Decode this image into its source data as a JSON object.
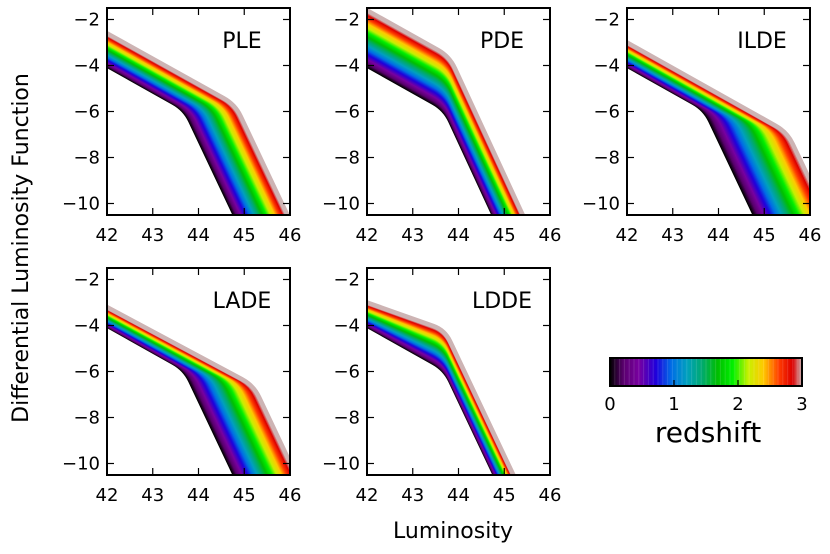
{
  "figure": {
    "xlabel": "Luminosity",
    "ylabel": "Differential Luminosity Function"
  },
  "colorbar": {
    "label": "redshift",
    "ticks": [
      "0",
      "1",
      "2",
      "3"
    ],
    "range": [
      0,
      3
    ]
  },
  "chart_data": [
    {
      "type": "line",
      "title": "PLE",
      "xlim": [
        42,
        46
      ],
      "ylim": [
        -10.5,
        -1.5
      ],
      "xticks": [
        "42",
        "43",
        "44",
        "45",
        "46"
      ],
      "yticks": [
        "−2",
        "−4",
        "−6",
        "−8",
        "−10"
      ],
      "series_description": "one curve per redshift 0 to 3",
      "curve_low_z": {
        "knee_x": 43.7,
        "knee_y": -5.9,
        "start_y": -4.0,
        "steep_slope": -4.2
      },
      "curve_high_z": {
        "knee_x": 44.8,
        "knee_y": -5.7,
        "start_y": -2.6,
        "steep_slope": -4.2
      }
    },
    {
      "type": "line",
      "title": "PDE",
      "xlim": [
        42,
        46
      ],
      "ylim": [
        -10.5,
        -1.5
      ],
      "xticks": [
        "42",
        "43",
        "44",
        "45",
        "46"
      ],
      "yticks": [
        "−2",
        "−4",
        "−6",
        "−8",
        "−10"
      ],
      "series_description": "one curve per redshift 0 to 3",
      "curve_low_z": {
        "knee_x": 43.7,
        "knee_y": -5.9,
        "start_y": -4.0,
        "steep_slope": -4.3
      },
      "curve_high_z": {
        "knee_x": 43.8,
        "knee_y": -3.6,
        "start_y": -1.6,
        "steep_slope": -4.3
      }
    },
    {
      "type": "line",
      "title": "ILDE",
      "xlim": [
        42,
        46
      ],
      "ylim": [
        -10.5,
        -1.5
      ],
      "xticks": [
        "42",
        "43",
        "44",
        "45",
        "46"
      ],
      "yticks": [
        "−2",
        "−4",
        "−6",
        "−8",
        "−10"
      ],
      "series_description": "one curve per redshift 0 to 3",
      "curve_low_z": {
        "knee_x": 43.7,
        "knee_y": -5.9,
        "start_y": -4.0,
        "steep_slope": -4.2
      },
      "curve_high_z": {
        "knee_x": 45.5,
        "knee_y": -6.9,
        "start_y": -3.0,
        "steep_slope": -4.2
      }
    },
    {
      "type": "line",
      "title": "LADE",
      "xlim": [
        42,
        46
      ],
      "ylim": [
        -10.5,
        -1.5
      ],
      "xticks": [
        "42",
        "43",
        "44",
        "45",
        "46"
      ],
      "yticks": [
        "−2",
        "−4",
        "−6",
        "−8",
        "−10"
      ],
      "series_description": "one curve per redshift 0 to 3",
      "curve_low_z": {
        "knee_x": 43.7,
        "knee_y": -5.9,
        "start_y": -4.0,
        "steep_slope": -4.2
      },
      "curve_high_z": {
        "knee_x": 45.2,
        "knee_y": -6.6,
        "start_y": -3.2,
        "steep_slope": -4.2
      }
    },
    {
      "type": "line",
      "title": "LDDE",
      "xlim": [
        42,
        46
      ],
      "ylim": [
        -10.5,
        -1.5
      ],
      "xticks": [
        "42",
        "43",
        "44",
        "45",
        "46"
      ],
      "yticks": [
        "−2",
        "−4",
        "−6",
        "−8",
        "−10"
      ],
      "series_description": "one curve per redshift 0 to 3",
      "curve_low_z": {
        "knee_x": 43.7,
        "knee_y": -5.9,
        "start_y": -4.0,
        "steep_slope": -4.2
      },
      "curve_high_z": {
        "knee_x": 43.7,
        "knee_y": -4.2,
        "start_y": -3.0,
        "steep_slope": -4.2
      }
    }
  ]
}
